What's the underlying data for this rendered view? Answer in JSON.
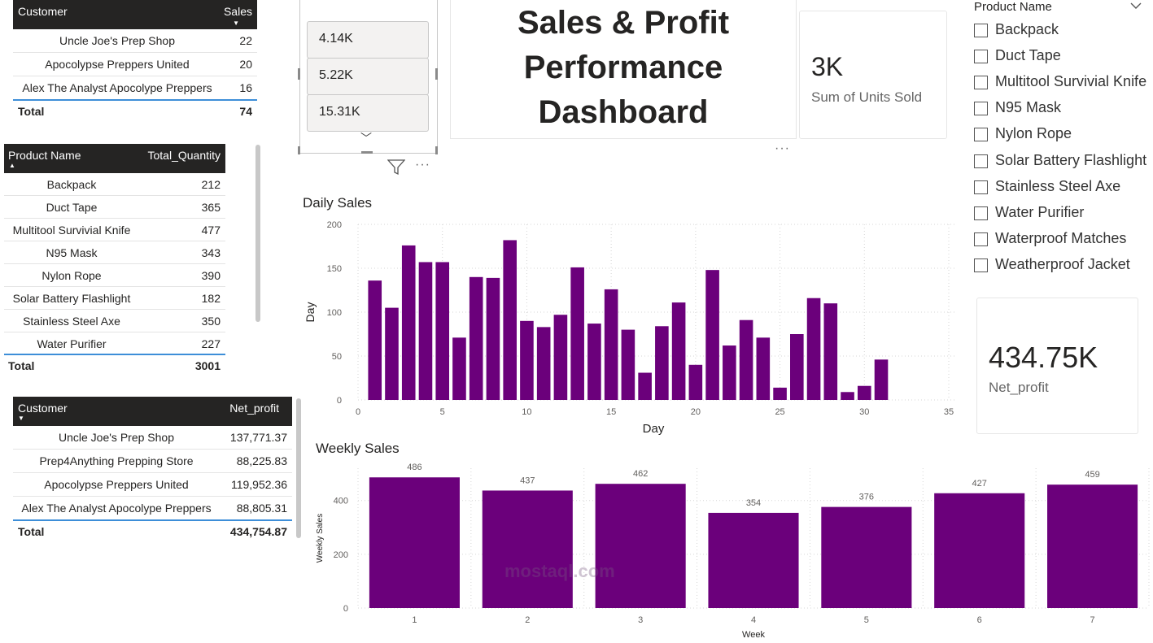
{
  "customer_sales_table": {
    "headers": [
      "Customer",
      "Sales"
    ],
    "rows": [
      {
        "customer": "Uncle Joe's Prep Shop",
        "value": "22"
      },
      {
        "customer": "Apocolypse Preppers United",
        "value": "20"
      },
      {
        "customer": "Alex The Analyst Apocolype Preppers",
        "value": "16"
      }
    ],
    "total_label": "Total",
    "total_value": "74"
  },
  "product_quantity_table": {
    "headers": [
      "Product Name",
      "Total_Quantity"
    ],
    "rows": [
      {
        "product": "Backpack",
        "value": "212"
      },
      {
        "product": "Duct Tape",
        "value": "365"
      },
      {
        "product": "Multitool Survivial Knife",
        "value": "477"
      },
      {
        "product": "N95 Mask",
        "value": "343"
      },
      {
        "product": "Nylon Rope",
        "value": "390"
      },
      {
        "product": "Solar Battery Flashlight",
        "value": "182"
      },
      {
        "product": "Stainless Steel Axe",
        "value": "350"
      },
      {
        "product": "Water Purifier",
        "value": "227"
      }
    ],
    "total_label": "Total",
    "total_value": "3001"
  },
  "customer_profit_table": {
    "headers": [
      "Customer",
      "Net_profit"
    ],
    "rows": [
      {
        "customer": "Uncle Joe's Prep Shop",
        "value": "137,771.37"
      },
      {
        "customer": "Prep4Anything Prepping Store",
        "value": "88,225.83"
      },
      {
        "customer": "Apocolypse Preppers United",
        "value": "119,952.36"
      },
      {
        "customer": "Alex The Analyst Apocolype Preppers",
        "value": "88,805.31"
      }
    ],
    "total_label": "Total",
    "total_value": "434,754.87"
  },
  "value_slicer": {
    "items": [
      "4.14K",
      "5.22K",
      "15.31K"
    ]
  },
  "dashboard_title": {
    "lines": [
      "Sales & Profit",
      "Performance",
      "Dashboard"
    ]
  },
  "units_card": {
    "value": "3K",
    "label": "Sum of Units Sold"
  },
  "profit_card": {
    "value": "434.75K",
    "label": "Net_profit"
  },
  "product_slicer": {
    "title": "Product Name",
    "items": [
      "Backpack",
      "Duct Tape",
      "Multitool Survivial Knife",
      "N95 Mask",
      "Nylon Rope",
      "Solar Battery Flashlight",
      "Stainless Steel Axe",
      "Water Purifier",
      "Waterproof Matches",
      "Weatherproof Jacket"
    ]
  },
  "colors": {
    "bar": "#6b007b",
    "header_bg": "#252423",
    "total_rule": "#3d8ed8"
  },
  "watermark": {
    "text": "mostaql.com"
  },
  "chart_data": [
    {
      "type": "bar",
      "title": "Daily Sales",
      "xlabel": "Day",
      "ylabel": "Day",
      "x": [
        1,
        2,
        3,
        4,
        5,
        6,
        7,
        8,
        9,
        10,
        11,
        12,
        13,
        14,
        15,
        16,
        17,
        18,
        19,
        20,
        21,
        22,
        23,
        24,
        25,
        26,
        27,
        28,
        29,
        30,
        31
      ],
      "values": [
        136,
        105,
        176,
        157,
        157,
        71,
        140,
        139,
        182,
        90,
        83,
        97,
        151,
        87,
        126,
        80,
        31,
        84,
        111,
        40,
        148,
        62,
        91,
        71,
        14,
        75,
        116,
        110,
        9,
        16,
        46
      ],
      "xlim": [
        0,
        35
      ],
      "ylim": [
        0,
        200
      ],
      "xticks": [
        0,
        5,
        10,
        15,
        20,
        25,
        30,
        35
      ],
      "yticks": [
        0,
        50,
        100,
        150,
        200
      ],
      "grid": true
    },
    {
      "type": "bar",
      "title": "Weekly Sales",
      "xlabel": "Week",
      "ylabel": "Weekly Sales",
      "categories": [
        "1",
        "2",
        "3",
        "4",
        "5",
        "6",
        "7"
      ],
      "values": [
        486,
        437,
        462,
        354,
        376,
        427,
        459
      ],
      "ylim": [
        0,
        520
      ],
      "yticks": [
        0,
        200,
        400
      ],
      "data_labels": true,
      "grid": true
    }
  ]
}
